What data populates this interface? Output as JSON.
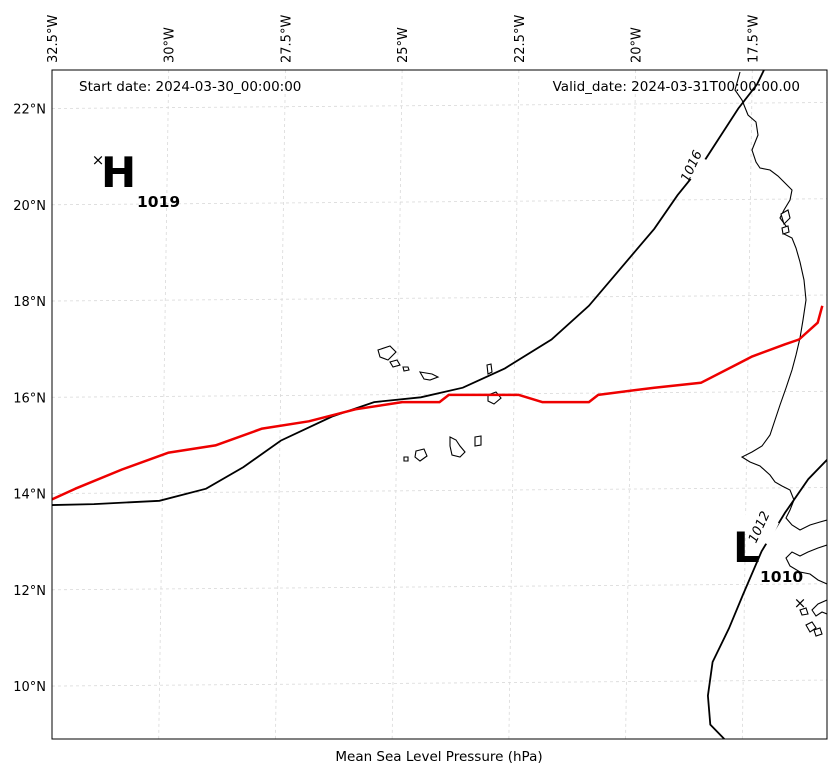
{
  "header": {
    "start_date": "Start date: 2024-03-30_00:00:00",
    "valid_date": "Valid_date: 2024-03-31T00:00:00.00"
  },
  "xlabel": "Mean Sea Level Pressure (hPa)",
  "map_extent": {
    "lon_min": -32.5,
    "lon_max": -15.9,
    "lat_min": 8.9,
    "lat_max": 22.8
  },
  "lon_ticks": [
    {
      "value": -32.5,
      "label": "32.5°W"
    },
    {
      "value": -30.0,
      "label": "30°W"
    },
    {
      "value": -27.5,
      "label": "27.5°W"
    },
    {
      "value": -25.0,
      "label": "25°W"
    },
    {
      "value": -22.5,
      "label": "22.5°W"
    },
    {
      "value": -20.0,
      "label": "20°W"
    },
    {
      "value": -17.5,
      "label": "17.5°W"
    }
  ],
  "lat_ticks": [
    {
      "value": 22,
      "label": "22°N"
    },
    {
      "value": 20,
      "label": "20°N"
    },
    {
      "value": 18,
      "label": "18°N"
    },
    {
      "value": 16,
      "label": "16°N"
    },
    {
      "value": 14,
      "label": "14°N"
    },
    {
      "value": 12,
      "label": "12°N"
    },
    {
      "value": 10,
      "label": "10°N"
    }
  ],
  "pressure_centres": [
    {
      "type": "high",
      "letter": "H",
      "value": "1019",
      "lon": -31.5,
      "lat": 20.7
    },
    {
      "type": "low",
      "letter": "L",
      "value": "1010",
      "lon": -16.6,
      "lat": 11.8
    }
  ],
  "isobars": [
    {
      "level": "1016",
      "label_position": {
        "lon": -18.8,
        "lat": 20.8
      },
      "points": [
        [
          -33.0,
          13.75
        ],
        [
          -31.6,
          13.78
        ],
        [
          -30.2,
          13.85
        ],
        [
          -29.2,
          14.1
        ],
        [
          -28.4,
          14.55
        ],
        [
          -27.6,
          15.1
        ],
        [
          -26.5,
          15.6
        ],
        [
          -25.6,
          15.9
        ],
        [
          -24.6,
          16.0
        ],
        [
          -23.7,
          16.2
        ],
        [
          -22.8,
          16.6
        ],
        [
          -21.8,
          17.2
        ],
        [
          -21.0,
          17.9
        ],
        [
          -20.3,
          18.7
        ],
        [
          -19.6,
          19.5
        ],
        [
          -19.1,
          20.2
        ],
        [
          -18.6,
          20.8
        ],
        [
          -18.2,
          21.4
        ],
        [
          -17.8,
          22.0
        ],
        [
          -17.4,
          22.5
        ],
        [
          -17.2,
          22.9
        ]
      ]
    },
    {
      "level": "1012",
      "label_position": {
        "lon": -17.35,
        "lat": 13.3
      },
      "points": [
        [
          -18.1,
          8.9
        ],
        [
          -18.4,
          9.2
        ],
        [
          -18.45,
          9.8
        ],
        [
          -18.35,
          10.5
        ],
        [
          -18.0,
          11.2
        ],
        [
          -17.7,
          11.9
        ],
        [
          -17.3,
          12.8
        ],
        [
          -16.8,
          13.6
        ],
        [
          -16.3,
          14.3
        ],
        [
          -15.9,
          14.7
        ],
        [
          -15.5,
          15.0
        ]
      ]
    }
  ],
  "track": {
    "color": "#ee0000",
    "points": [
      [
        -32.9,
        13.7
      ],
      [
        -32.0,
        14.1
      ],
      [
        -31.0,
        14.5
      ],
      [
        -30.0,
        14.85
      ],
      [
        -29.0,
        15.0
      ],
      [
        -28.0,
        15.35
      ],
      [
        -27.0,
        15.5
      ],
      [
        -26.0,
        15.75
      ],
      [
        -25.0,
        15.9
      ],
      [
        -24.2,
        15.9
      ],
      [
        -24.0,
        16.05
      ],
      [
        -23.0,
        16.05
      ],
      [
        -22.5,
        16.05
      ],
      [
        -22.0,
        15.9
      ],
      [
        -21.0,
        15.9
      ],
      [
        -20.8,
        16.05
      ],
      [
        -19.6,
        16.2
      ],
      [
        -18.6,
        16.3
      ],
      [
        -17.8,
        16.7
      ],
      [
        -17.5,
        16.85
      ],
      [
        -16.8,
        17.1
      ],
      [
        -16.5,
        17.2
      ],
      [
        -16.1,
        17.55
      ],
      [
        -16.0,
        17.9
      ]
    ]
  }
}
